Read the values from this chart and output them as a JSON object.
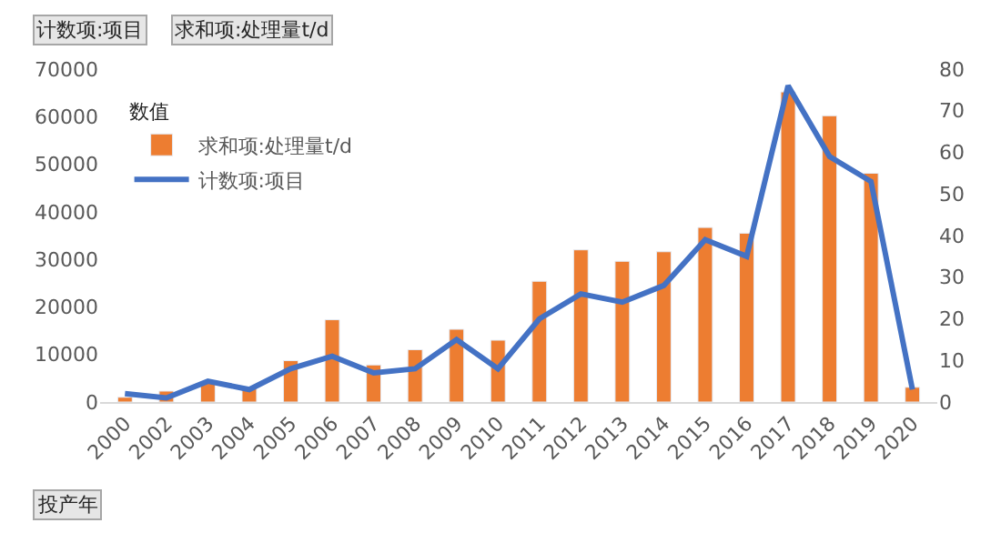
{
  "chart_data": {
    "type": "bar",
    "categories": [
      "2000",
      "2002",
      "2003",
      "2004",
      "2005",
      "2006",
      "2007",
      "2008",
      "2009",
      "2010",
      "2011",
      "2012",
      "2013",
      "2014",
      "2015",
      "2016",
      "2017",
      "2018",
      "2019",
      "2020"
    ],
    "series": [
      {
        "name": "求和项:处理量t/d",
        "color": "#ed7d31",
        "values": [
          1000,
          2300,
          4300,
          3000,
          8700,
          17300,
          7800,
          11000,
          15300,
          13000,
          25400,
          32000,
          29600,
          31600,
          36700,
          35500,
          65200,
          60200,
          48100,
          3100
        ]
      },
      {
        "name": "计数项:项目",
        "color": "#4472c4",
        "type": "line",
        "axis": "y2",
        "values": [
          2,
          1,
          5,
          3,
          8,
          11,
          7,
          8,
          15,
          8,
          20,
          26,
          24,
          28,
          39,
          35,
          76,
          59,
          53,
          3
        ]
      }
    ],
    "ylim": [
      0,
      70000
    ],
    "yticks": [
      0,
      10000,
      20000,
      30000,
      40000,
      50000,
      60000,
      70000
    ],
    "y2lim": [
      0,
      80
    ],
    "y2ticks": [
      0,
      10,
      20,
      30,
      40,
      50,
      60,
      70,
      80
    ],
    "legend": "top left",
    "legend_title": "数值",
    "marker": "none",
    "annotations": [
      "计数项:项目",
      "求和项:处理量t/d",
      "投产年"
    ]
  }
}
